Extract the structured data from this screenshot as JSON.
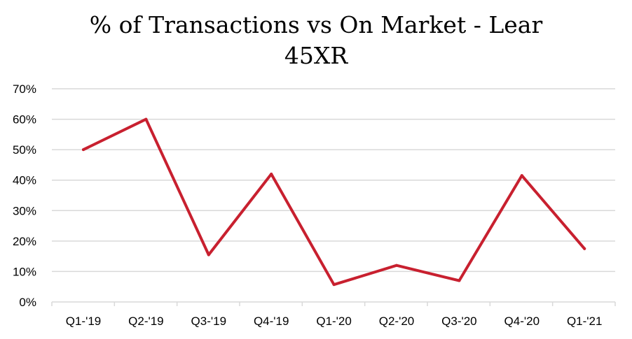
{
  "chart_data": {
    "type": "line",
    "title_line1": "% of Transactions vs On Market - Lear",
    "title_line2": "45XR",
    "categories": [
      "Q1-'19",
      "Q2-'19",
      "Q3-'19",
      "Q4-'19",
      "Q1-'20",
      "Q2-'20",
      "Q3-'20",
      "Q4-'20",
      "Q1-'21"
    ],
    "series": [
      {
        "values": [
          0.5,
          0.6,
          0.155,
          0.42,
          0.057,
          0.12,
          0.07,
          0.415,
          0.175
        ],
        "color": "#c8202f"
      }
    ],
    "y_ticks": [
      "0%",
      "10%",
      "20%",
      "30%",
      "40%",
      "50%",
      "60%",
      "70%"
    ],
    "ylim": [
      0,
      0.7
    ],
    "grid": true,
    "grid_color": "#d9d9d9"
  }
}
